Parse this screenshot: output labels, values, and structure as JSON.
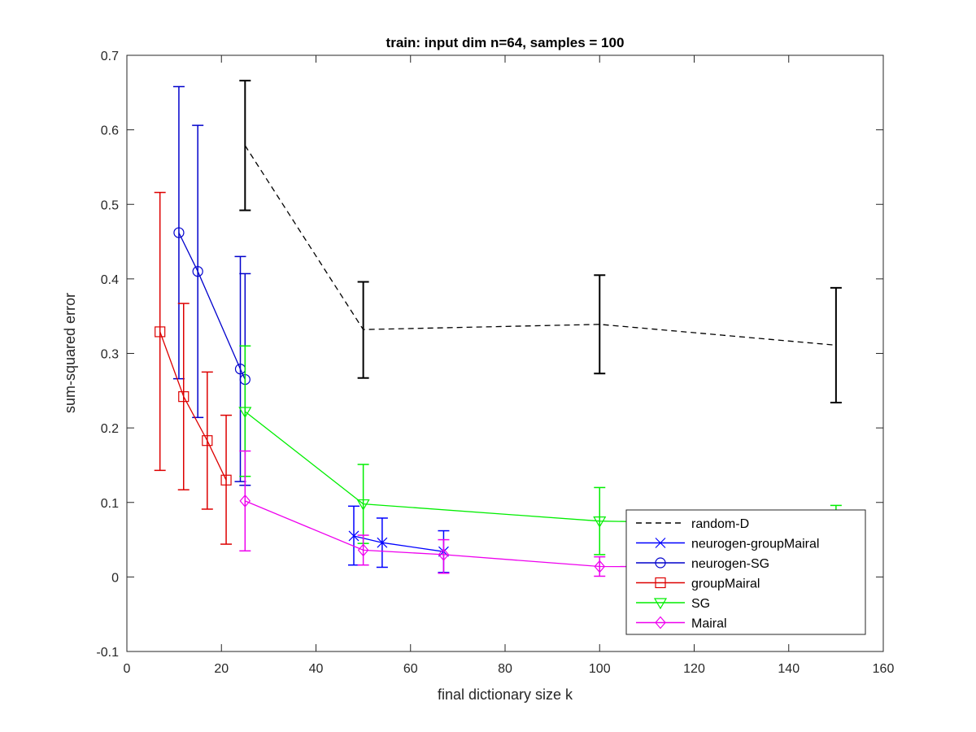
{
  "chart_data": {
    "type": "line",
    "title": "train: input dim n=64, samples = 100",
    "xlabel": "final dictionary size k",
    "ylabel": "sum-squared error",
    "xlim": [
      0,
      160
    ],
    "ylim": [
      -0.1,
      0.7
    ],
    "x_ticks": [
      0,
      20,
      40,
      60,
      80,
      100,
      120,
      140,
      160
    ],
    "y_ticks": [
      -0.1,
      0,
      0.1,
      0.2,
      0.3,
      0.4,
      0.5,
      0.6,
      0.7
    ],
    "x_tick_labels": [
      "0",
      "20",
      "40",
      "60",
      "80",
      "100",
      "120",
      "140",
      "160"
    ],
    "y_tick_labels": [
      "-0.1",
      "0",
      "0.1",
      "0.2",
      "0.3",
      "0.4",
      "0.5",
      "0.6",
      "0.7"
    ],
    "grid": false,
    "legend_position": "bottom-right",
    "series": [
      {
        "name": "random-D",
        "color": "#000000",
        "dash": "dashed",
        "marker": "none",
        "points": [
          {
            "x": 25,
            "y": 0.579,
            "lo": 0.492,
            "hi": 0.666
          },
          {
            "x": 50,
            "y": 0.332,
            "lo": 0.267,
            "hi": 0.396
          },
          {
            "x": 100,
            "y": 0.339,
            "lo": 0.273,
            "hi": 0.405
          },
          {
            "x": 150,
            "y": 0.311,
            "lo": 0.234,
            "hi": 0.388
          }
        ]
      },
      {
        "name": "neurogen-groupMairal",
        "color": "#0000ff",
        "dash": "solid",
        "marker": "x",
        "points": [
          {
            "x": 48,
            "y": 0.055,
            "lo": 0.016,
            "hi": 0.095
          },
          {
            "x": 54,
            "y": 0.046,
            "lo": 0.013,
            "hi": 0.079
          },
          {
            "x": 67,
            "y": 0.034,
            "lo": 0.006,
            "hi": 0.062
          }
        ]
      },
      {
        "name": "neurogen-SG",
        "color": "#0000cc",
        "dash": "solid",
        "marker": "o",
        "points": [
          {
            "x": 11,
            "y": 0.462,
            "lo": 0.266,
            "hi": 0.658
          },
          {
            "x": 15,
            "y": 0.41,
            "lo": 0.214,
            "hi": 0.606
          },
          {
            "x": 24,
            "y": 0.279,
            "lo": 0.128,
            "hi": 0.43
          },
          {
            "x": 25,
            "y": 0.265,
            "lo": 0.123,
            "hi": 0.407
          }
        ]
      },
      {
        "name": "groupMairal",
        "color": "#dd0000",
        "dash": "solid",
        "marker": "s",
        "points": [
          {
            "x": 7,
            "y": 0.329,
            "lo": 0.143,
            "hi": 0.516
          },
          {
            "x": 12,
            "y": 0.242,
            "lo": 0.117,
            "hi": 0.367
          },
          {
            "x": 17,
            "y": 0.183,
            "lo": 0.091,
            "hi": 0.275
          },
          {
            "x": 21,
            "y": 0.13,
            "lo": 0.044,
            "hi": 0.217
          }
        ]
      },
      {
        "name": "SG",
        "color": "#00ee00",
        "dash": "solid",
        "marker": "v",
        "points": [
          {
            "x": 25,
            "y": 0.222,
            "lo": 0.135,
            "hi": 0.31
          },
          {
            "x": 50,
            "y": 0.098,
            "lo": 0.045,
            "hi": 0.151
          },
          {
            "x": 100,
            "y": 0.075,
            "lo": 0.03,
            "hi": 0.12
          },
          {
            "x": 150,
            "y": 0.07,
            "lo": 0.044,
            "hi": 0.096
          }
        ]
      },
      {
        "name": "Mairal",
        "color": "#ee00ee",
        "dash": "solid",
        "marker": "d",
        "points": [
          {
            "x": 25,
            "y": 0.102,
            "lo": 0.035,
            "hi": 0.169
          },
          {
            "x": 50,
            "y": 0.036,
            "lo": 0.016,
            "hi": 0.056
          },
          {
            "x": 67,
            "y": 0.03,
            "lo": 0.005,
            "hi": 0.05
          },
          {
            "x": 100,
            "y": 0.014,
            "lo": 0.001,
            "hi": 0.027
          },
          {
            "x": 150,
            "y": 0.013,
            "lo": 0.002,
            "hi": 0.024
          }
        ]
      }
    ]
  }
}
